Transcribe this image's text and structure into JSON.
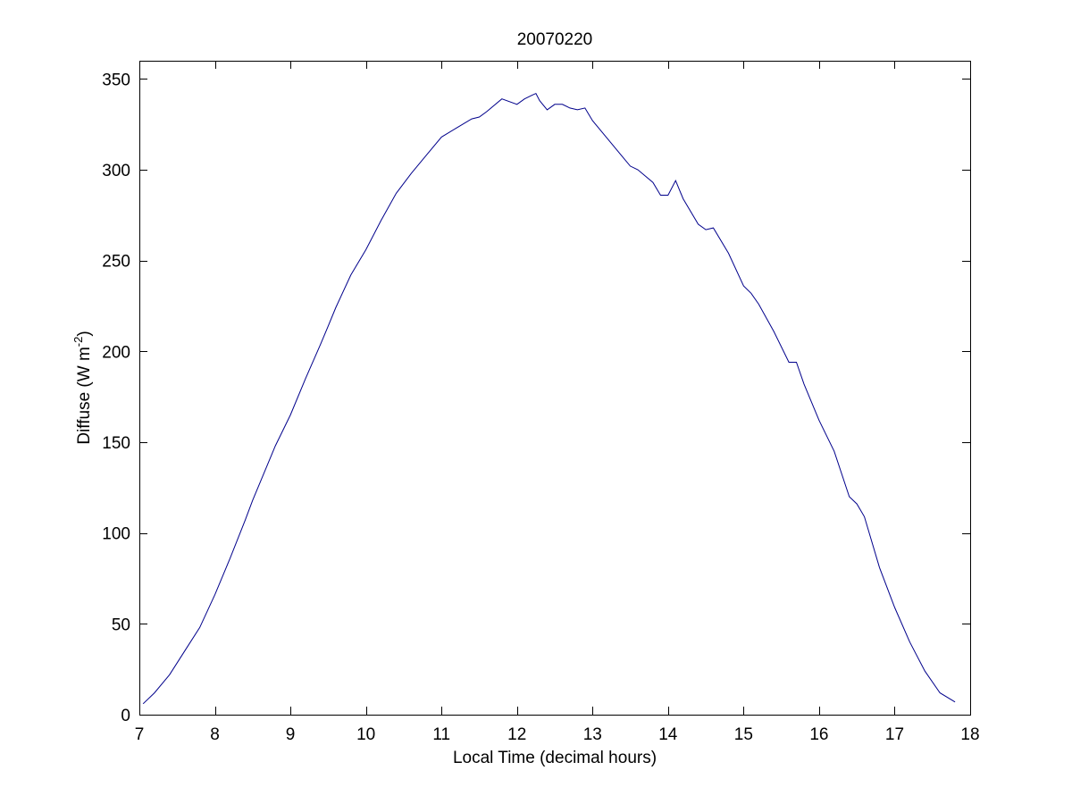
{
  "chart_data": {
    "type": "line",
    "title": "20070220",
    "xlabel": "Local Time (decimal hours)",
    "ylabel_main": "Diffuse (W m",
    "ylabel_sup": "-2",
    "ylabel_close": ")",
    "xlim": [
      7,
      18
    ],
    "ylim": [
      0,
      360
    ],
    "xticks": [
      7,
      8,
      9,
      10,
      11,
      12,
      13,
      14,
      15,
      16,
      17,
      18
    ],
    "yticks": [
      0,
      50,
      100,
      150,
      200,
      250,
      300,
      350
    ],
    "grid": false,
    "line_color": "#00008b",
    "series": [
      {
        "x": [
          7.05,
          7.2,
          7.4,
          7.6,
          7.8,
          8.0,
          8.2,
          8.4,
          8.5,
          8.6,
          8.8,
          9.0,
          9.2,
          9.4,
          9.5,
          9.6,
          9.8,
          10.0,
          10.2,
          10.4,
          10.6,
          10.8,
          11.0,
          11.2,
          11.4,
          11.5,
          11.6,
          11.8,
          12.0,
          12.1,
          12.2,
          12.25,
          12.3,
          12.4,
          12.5,
          12.6,
          12.7,
          12.8,
          12.9,
          13.0,
          13.2,
          13.4,
          13.5,
          13.6,
          13.8,
          13.9,
          14.0,
          14.1,
          14.2,
          14.4,
          14.5,
          14.6,
          14.8,
          15.0,
          15.1,
          15.2,
          15.4,
          15.6,
          15.7,
          15.8,
          16.0,
          16.2,
          16.4,
          16.5,
          16.6,
          16.8,
          17.0,
          17.2,
          17.4,
          17.6,
          17.8
        ],
        "y": [
          6,
          12,
          22,
          35,
          48,
          66,
          86,
          107,
          118,
          128,
          148,
          165,
          185,
          204,
          214,
          224,
          242,
          256,
          272,
          287,
          298,
          308,
          318,
          323,
          328,
          329,
          332,
          339,
          336,
          339,
          341,
          342,
          338,
          333,
          336,
          336,
          334,
          333,
          334,
          327,
          317,
          307,
          302,
          300,
          293,
          286,
          286,
          294,
          284,
          270,
          267,
          268,
          254,
          236,
          232,
          226,
          211,
          194,
          194,
          182,
          162,
          145,
          120,
          116,
          109,
          81,
          59,
          40,
          24,
          12,
          7
        ]
      }
    ]
  }
}
